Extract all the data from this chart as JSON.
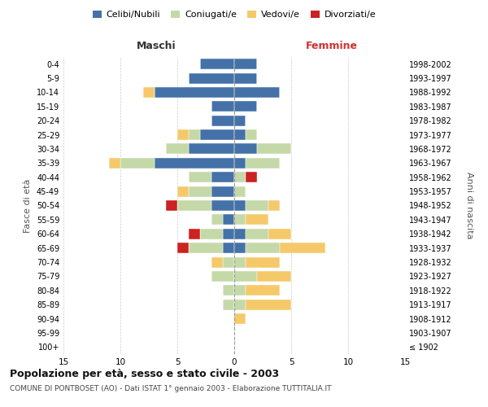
{
  "age_groups": [
    "100+",
    "95-99",
    "90-94",
    "85-89",
    "80-84",
    "75-79",
    "70-74",
    "65-69",
    "60-64",
    "55-59",
    "50-54",
    "45-49",
    "40-44",
    "35-39",
    "30-34",
    "25-29",
    "20-24",
    "15-19",
    "10-14",
    "5-9",
    "0-4"
  ],
  "birth_years": [
    "≤ 1902",
    "1903-1907",
    "1908-1912",
    "1913-1917",
    "1918-1922",
    "1923-1927",
    "1928-1932",
    "1933-1937",
    "1938-1942",
    "1943-1947",
    "1948-1952",
    "1953-1957",
    "1958-1962",
    "1963-1967",
    "1968-1972",
    "1973-1977",
    "1978-1982",
    "1983-1987",
    "1988-1992",
    "1993-1997",
    "1998-2002"
  ],
  "maschi": {
    "celibi": [
      0,
      0,
      0,
      0,
      0,
      0,
      0,
      1,
      1,
      1,
      2,
      2,
      2,
      7,
      4,
      3,
      2,
      2,
      7,
      4,
      3
    ],
    "coniugati": [
      0,
      0,
      0,
      1,
      1,
      2,
      1,
      3,
      2,
      1,
      3,
      2,
      2,
      3,
      2,
      1,
      0,
      0,
      0,
      0,
      0
    ],
    "vedovi": [
      0,
      0,
      0,
      0,
      0,
      0,
      1,
      0,
      0,
      0,
      0,
      1,
      0,
      1,
      0,
      1,
      0,
      0,
      1,
      0,
      0
    ],
    "divorziati": [
      0,
      0,
      0,
      0,
      0,
      0,
      0,
      1,
      1,
      0,
      1,
      0,
      0,
      0,
      0,
      0,
      0,
      0,
      0,
      0,
      0
    ]
  },
  "femmine": {
    "nubili": [
      0,
      0,
      0,
      0,
      0,
      0,
      0,
      1,
      1,
      0,
      1,
      0,
      0,
      1,
      2,
      1,
      1,
      2,
      4,
      2,
      2
    ],
    "coniugate": [
      0,
      0,
      0,
      1,
      1,
      2,
      1,
      3,
      2,
      1,
      2,
      1,
      1,
      3,
      3,
      1,
      0,
      0,
      0,
      0,
      0
    ],
    "vedove": [
      0,
      0,
      1,
      4,
      3,
      3,
      3,
      4,
      2,
      2,
      1,
      0,
      0,
      0,
      0,
      0,
      0,
      0,
      0,
      0,
      0
    ],
    "divorziate": [
      0,
      0,
      0,
      0,
      0,
      0,
      0,
      0,
      0,
      0,
      0,
      0,
      1,
      0,
      0,
      0,
      0,
      0,
      0,
      0,
      0
    ]
  },
  "colors": {
    "celibi_nubili": "#4472a8",
    "coniugati": "#c5d9a8",
    "vedovi": "#f5c96a",
    "divorziati": "#cc2222"
  },
  "xlim": 15,
  "title": "Popolazione per età, sesso e stato civile - 2003",
  "subtitle": "COMUNE DI PONTBOSET (AO) - Dati ISTAT 1° gennaio 2003 - Elaborazione TUTTITALIA.IT",
  "xlabel_left": "Maschi",
  "xlabel_right": "Femmine",
  "ylabel_left": "Fasce di età",
  "ylabel_right": "Anni di nascita",
  "legend_labels": [
    "Celibi/Nubili",
    "Coniugati/e",
    "Vedovi/e",
    "Divorziati/e"
  ]
}
